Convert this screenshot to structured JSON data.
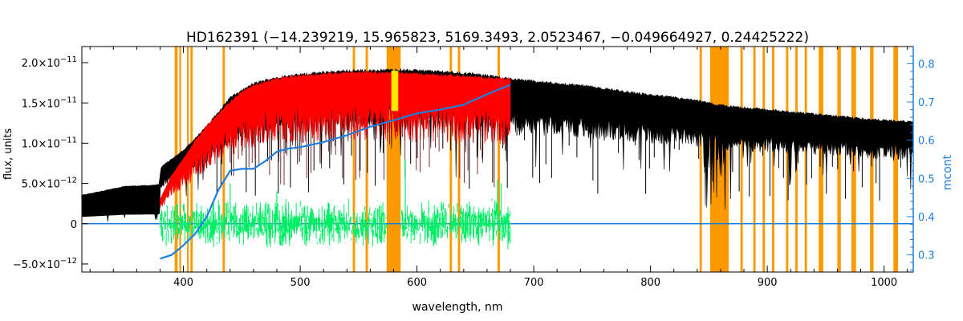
{
  "chart_data": {
    "type": "line",
    "title": "HD162391   (−14.239219, 15.965823, 5169.3493, 2.0523467, −0.049664927, 0.24425222)",
    "xlabel": "wavelength, nm",
    "ylabel_left": "flux, units",
    "ylabel_right": "mcont",
    "xlim": [
      313,
      1025
    ],
    "ylim_left": [
      -6e-12,
      2.2e-11
    ],
    "ylim_right": [
      0.255,
      0.845
    ],
    "x_ticks": [
      400,
      500,
      600,
      700,
      800,
      900,
      1000
    ],
    "y_ticks_left": [
      {
        "value": -5e-12,
        "mant": "−5.0×10",
        "exp": "−12"
      },
      {
        "value": 0,
        "mant": "0",
        "exp": ""
      },
      {
        "value": 5e-12,
        "mant": "5.0×10",
        "exp": "−12"
      },
      {
        "value": 1e-11,
        "mant": "1.0×10",
        "exp": "−11"
      },
      {
        "value": 1.5e-11,
        "mant": "1.5×10",
        "exp": "−11"
      },
      {
        "value": 2e-11,
        "mant": "2.0×10",
        "exp": "−11"
      }
    ],
    "y_ticks_right": [
      0.3,
      0.4,
      0.5,
      0.6,
      0.7,
      0.8
    ],
    "masked_bands_nm": [
      [
        392.5,
        395
      ],
      [
        396.5,
        398
      ],
      [
        403,
        404.5
      ],
      [
        406,
        408
      ],
      [
        433.5,
        435.5
      ],
      [
        545,
        547
      ],
      [
        556,
        558
      ],
      [
        574,
        586
      ],
      [
        628,
        630
      ],
      [
        635,
        637
      ],
      [
        669,
        671
      ],
      [
        842,
        844
      ],
      [
        851,
        867
      ],
      [
        877,
        879
      ],
      [
        888,
        890
      ],
      [
        896,
        898
      ],
      [
        904,
        906
      ],
      [
        916,
        918
      ],
      [
        924,
        926
      ],
      [
        932,
        934
      ],
      [
        944,
        948
      ],
      [
        960,
        963
      ],
      [
        972,
        976
      ],
      [
        988,
        991
      ],
      [
        1008,
        1012
      ]
    ],
    "series": [
      {
        "color": "#000000",
        "style": "observed spectrum",
        "x": [
          313,
          330,
          350,
          370,
          379,
          381,
          400,
          420,
          440,
          460,
          480,
          500,
          520,
          540,
          560,
          580,
          600,
          620,
          640,
          660,
          680,
          700,
          720,
          740,
          760,
          780,
          800,
          820,
          840,
          848,
          856,
          870,
          900,
          930,
          960,
          990,
          1025
        ],
        "y": [
          3.5e-12,
          4e-12,
          4.6e-12,
          4.7e-12,
          4.8e-12,
          7e-12,
          9e-12,
          1.2e-11,
          1.55e-11,
          1.72e-11,
          1.8e-11,
          1.83e-11,
          1.86e-11,
          1.88e-11,
          1.88e-11,
          1.89e-11,
          1.88e-11,
          1.87e-11,
          1.85e-11,
          1.82e-11,
          1.78e-11,
          1.75e-11,
          1.72e-11,
          1.7e-11,
          1.66e-11,
          1.62e-11,
          1.58e-11,
          1.55e-11,
          1.51e-11,
          1.49e-11,
          1.46e-11,
          1.44e-11,
          1.4e-11,
          1.36e-11,
          1.32e-11,
          1.28e-11,
          1.25e-11
        ]
      },
      {
        "color": "#ff0000",
        "style": "model spectrum",
        "x": [
          380,
          390,
          400,
          410,
          420,
          430,
          440,
          450,
          460,
          480,
          500,
          520,
          540,
          560,
          580,
          600,
          620,
          640,
          660,
          680
        ],
        "y": [
          3e-12,
          6e-12,
          8e-12,
          1.02e-11,
          1.2e-11,
          1.35e-11,
          1.5e-11,
          1.62e-11,
          1.7e-11,
          1.78e-11,
          1.82e-11,
          1.84e-11,
          1.86e-11,
          1.86e-11,
          1.85e-11,
          1.84e-11,
          1.83e-11,
          1.81e-11,
          1.79e-11,
          1.78e-11
        ]
      },
      {
        "color": "#00ee66",
        "style": "residuals",
        "x_range": [
          380,
          680
        ],
        "scatter": 2.5e-12
      },
      {
        "color": "#1e7fe0",
        "style": "continuum (right axis)",
        "axis": "right",
        "x": [
          380,
          390,
          400,
          410,
          420,
          430,
          440,
          450,
          460,
          470,
          480,
          490,
          500,
          520,
          540,
          560,
          580,
          600,
          620,
          640,
          660,
          680
        ],
        "y": [
          0.29,
          0.3,
          0.325,
          0.355,
          0.4,
          0.47,
          0.52,
          0.525,
          0.525,
          0.545,
          0.57,
          0.578,
          0.582,
          0.595,
          0.613,
          0.635,
          0.652,
          0.67,
          0.68,
          0.693,
          0.72,
          0.745
        ]
      }
    ],
    "band_color": "#ff9900",
    "highlight_color": "#ffff00"
  }
}
